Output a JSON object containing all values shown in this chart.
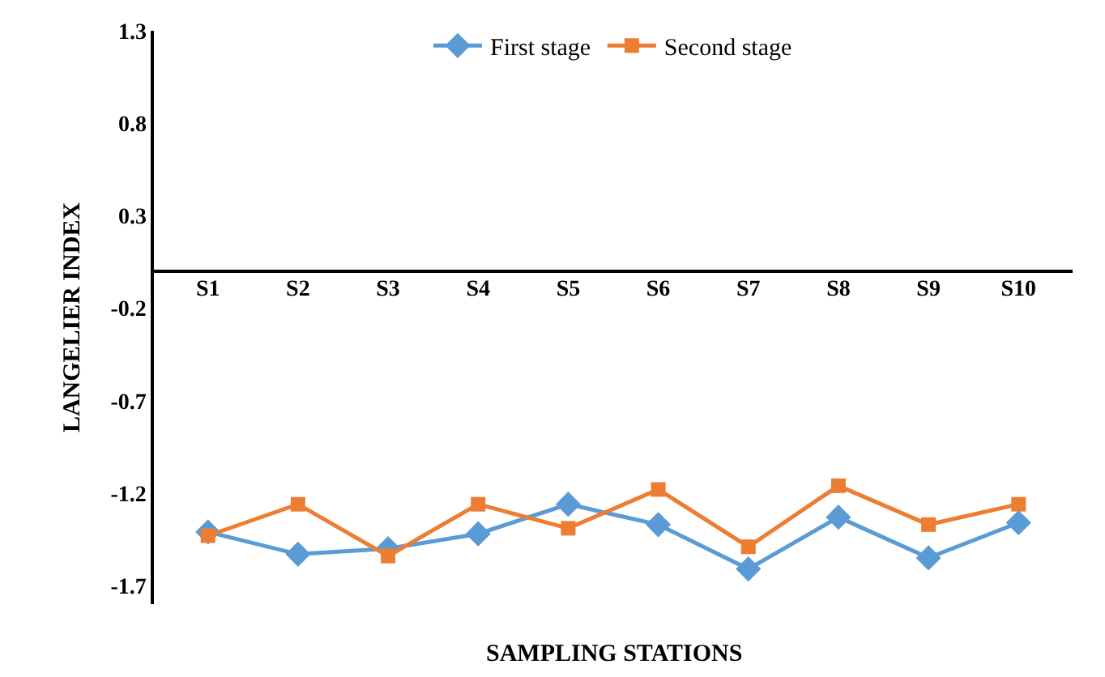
{
  "chart_data": {
    "type": "line",
    "xlabel": "SAMPLING STATIONS",
    "ylabel": "LANGELIER INDEX",
    "categories": [
      "S1",
      "S2",
      "S3",
      "S4",
      "S5",
      "S6",
      "S7",
      "S8",
      "S9",
      "S10"
    ],
    "series": [
      {
        "name": "First stage",
        "color": "#5b9bd5",
        "marker": "diamond",
        "values": [
          -1.41,
          -1.53,
          -1.5,
          -1.42,
          -1.26,
          -1.37,
          -1.61,
          -1.33,
          -1.55,
          -1.36
        ]
      },
      {
        "name": "Second stage",
        "color": "#ed7d31",
        "marker": "square",
        "values": [
          -1.43,
          -1.26,
          -1.54,
          -1.26,
          -1.39,
          -1.18,
          -1.49,
          -1.16,
          -1.37,
          -1.26
        ]
      }
    ],
    "ylim": [
      -1.8,
      1.3
    ],
    "yticks": [
      -1.7,
      -1.2,
      -0.7,
      -0.2,
      0.3,
      0.8,
      1.3
    ],
    "legend": "top",
    "line_style": "solid"
  }
}
